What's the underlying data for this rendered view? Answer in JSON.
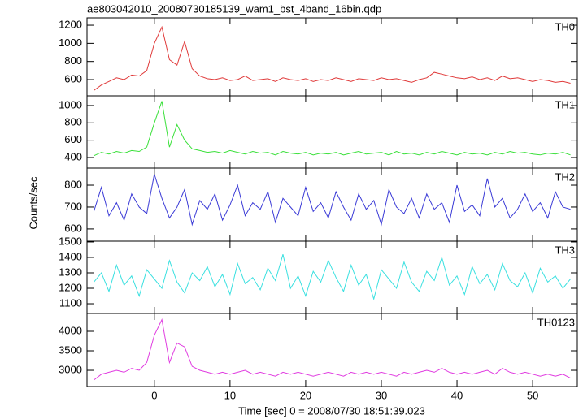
{
  "title": "ae803042010_20080730185139_wam1_bst_4band_16bin.qdp",
  "ylabel": "Counts/sec",
  "xlabel": "Time [sec] 0 = 2008/07/30 18:51:39.023",
  "xlim": [
    -8.9,
    55.9
  ],
  "xticks": [
    0,
    10,
    20,
    30,
    40,
    50
  ],
  "x": [
    -8,
    -7,
    -6,
    -5,
    -4,
    -3,
    -2,
    -1,
    0,
    1,
    2,
    3,
    4,
    5,
    6,
    7,
    8,
    9,
    10,
    11,
    12,
    13,
    14,
    15,
    16,
    17,
    18,
    19,
    20,
    21,
    22,
    23,
    24,
    25,
    26,
    27,
    28,
    29,
    30,
    31,
    32,
    33,
    34,
    35,
    36,
    37,
    38,
    39,
    40,
    41,
    42,
    43,
    44,
    45,
    46,
    47,
    48,
    49,
    50,
    51,
    52,
    53,
    54,
    55
  ],
  "chart_data": [
    {
      "type": "line",
      "label": "TH0",
      "color": "#e03a3a",
      "ylim": [
        421,
        1281
      ],
      "yticks": [
        600,
        800,
        1000,
        1200
      ],
      "values": [
        480,
        540,
        580,
        620,
        600,
        650,
        640,
        700,
        1000,
        1180,
        820,
        760,
        1020,
        720,
        640,
        610,
        600,
        620,
        590,
        600,
        640,
        590,
        600,
        610,
        580,
        620,
        600,
        590,
        610,
        580,
        600,
        590,
        620,
        600,
        580,
        610,
        600,
        590,
        620,
        600,
        610,
        590,
        570,
        600,
        620,
        680,
        660,
        640,
        620,
        610,
        630,
        600,
        620,
        590,
        640,
        610,
        620,
        600,
        580,
        600,
        590,
        570,
        580,
        560
      ]
    },
    {
      "type": "line",
      "label": "TH1",
      "color": "#3ae03a",
      "ylim": [
        278,
        1112
      ],
      "yticks": [
        400,
        600,
        800,
        1000
      ],
      "values": [
        420,
        460,
        440,
        470,
        450,
        480,
        470,
        520,
        800,
        1050,
        520,
        780,
        600,
        500,
        480,
        460,
        470,
        450,
        480,
        460,
        440,
        470,
        450,
        460,
        430,
        470,
        450,
        440,
        460,
        430,
        450,
        440,
        460,
        430,
        450,
        470,
        440,
        450,
        460,
        430,
        470,
        440,
        450,
        430,
        460,
        440,
        470,
        450,
        430,
        460,
        440,
        450,
        430,
        460,
        440,
        470,
        450,
        460,
        440,
        430,
        450,
        440,
        460,
        430
      ]
    },
    {
      "type": "line",
      "label": "TH2",
      "color": "#3a3ad6",
      "ylim": [
        544,
        878
      ],
      "yticks": [
        600,
        700,
        800
      ],
      "values": [
        680,
        790,
        660,
        720,
        640,
        760,
        700,
        670,
        850,
        740,
        650,
        700,
        780,
        620,
        730,
        690,
        760,
        640,
        710,
        800,
        660,
        720,
        690,
        770,
        630,
        740,
        700,
        660,
        790,
        680,
        720,
        650,
        770,
        700,
        640,
        760,
        690,
        730,
        620,
        780,
        700,
        670,
        740,
        650,
        760,
        690,
        720,
        630,
        800,
        680,
        710,
        660,
        830,
        700,
        740,
        650,
        690,
        760,
        680,
        720,
        650,
        770,
        700,
        690
      ]
    },
    {
      "type": "line",
      "label": "TH3",
      "color": "#3ae0e0",
      "ylim": [
        1037,
        1505
      ],
      "yticks": [
        1100,
        1200,
        1300,
        1400,
        1500
      ],
      "values": [
        1240,
        1300,
        1180,
        1350,
        1220,
        1280,
        1150,
        1320,
        1260,
        1200,
        1380,
        1240,
        1170,
        1300,
        1250,
        1340,
        1210,
        1290,
        1160,
        1360,
        1230,
        1270,
        1190,
        1330,
        1250,
        1420,
        1200,
        1280,
        1150,
        1310,
        1240,
        1380,
        1270,
        1180,
        1350,
        1220,
        1290,
        1130,
        1320,
        1260,
        1200,
        1370,
        1240,
        1180,
        1310,
        1250,
        1400,
        1220,
        1280,
        1160,
        1340,
        1230,
        1290,
        1190,
        1360,
        1250,
        1210,
        1300,
        1170,
        1330,
        1240,
        1280,
        1200,
        1260
      ]
    },
    {
      "type": "line",
      "label": "TH0123",
      "color": "#e03ae0",
      "ylim": [
        2584,
        4458
      ],
      "yticks": [
        3000,
        3500,
        4000
      ],
      "values": [
        2750,
        2900,
        2950,
        3000,
        2950,
        3050,
        3000,
        3200,
        3900,
        4300,
        3200,
        3700,
        3600,
        3100,
        3000,
        2950,
        2900,
        2950,
        2900,
        2950,
        3000,
        2900,
        2950,
        2900,
        2850,
        2950,
        2900,
        2950,
        2900,
        2850,
        2900,
        2950,
        2900,
        2850,
        2950,
        2900,
        2950,
        2900,
        2950,
        2900,
        2850,
        2950,
        2900,
        2950,
        3000,
        2950,
        3050,
        2950,
        2900,
        2950,
        2900,
        2950,
        3000,
        2900,
        3050,
        2950,
        2900,
        2950,
        2900,
        2850,
        2900,
        2850,
        2900,
        2800
      ]
    }
  ]
}
